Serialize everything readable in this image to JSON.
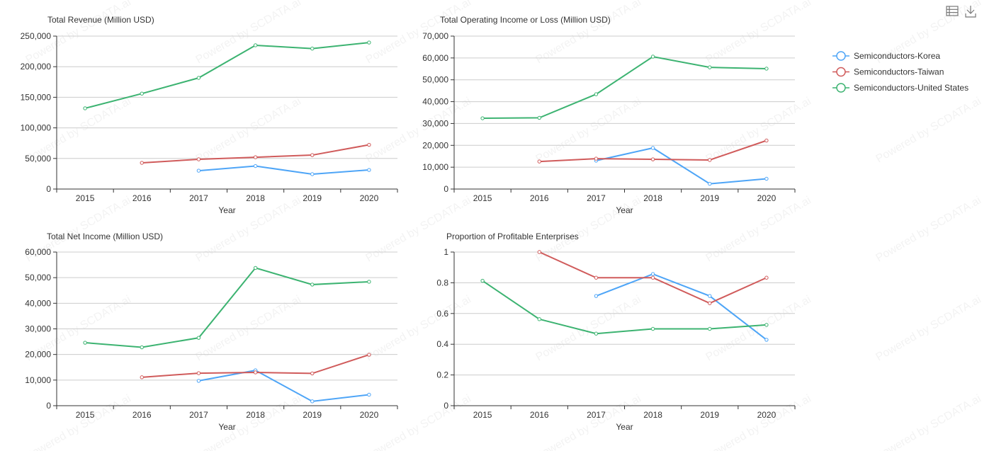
{
  "toolbar": {
    "icons": [
      "data-view-icon",
      "download-icon"
    ]
  },
  "watermark": "Powered by SCDATA.ai",
  "legend": [
    {
      "name": "Semiconductors-Korea",
      "color": "#4ea5f7"
    },
    {
      "name": "Semiconductors-Taiwan",
      "color": "#d05b5b"
    },
    {
      "name": "Semiconductors-United States",
      "color": "#3cb371"
    }
  ],
  "chart_data": [
    {
      "type": "line",
      "title": "Total Revenue (Million USD)",
      "xlabel": "Year",
      "categories": [
        "2015",
        "2016",
        "2017",
        "2018",
        "2019",
        "2020"
      ],
      "ylim": [
        0,
        250000
      ],
      "yticks": [
        "0",
        "50,000",
        "100,000",
        "150,000",
        "200,000",
        "250,000"
      ],
      "grid": true,
      "series": [
        {
          "name": "Semiconductors-Korea",
          "values": [
            null,
            null,
            30000,
            37600,
            24300,
            31200
          ]
        },
        {
          "name": "Semiconductors-Taiwan",
          "values": [
            null,
            42800,
            48600,
            52000,
            55500,
            72300
          ]
        },
        {
          "name": "Semiconductors-United States",
          "values": [
            132000,
            156000,
            181700,
            235000,
            229600,
            239500
          ]
        }
      ]
    },
    {
      "type": "line",
      "title": "Total Operating Income or Loss (Million USD)",
      "xlabel": "Year",
      "categories": [
        "2015",
        "2016",
        "2017",
        "2018",
        "2019",
        "2020"
      ],
      "ylim": [
        0,
        70000
      ],
      "yticks": [
        "0",
        "10,000",
        "20,000",
        "30,000",
        "40,000",
        "50,000",
        "60,000",
        "70,000"
      ],
      "grid": true,
      "series": [
        {
          "name": "Semiconductors-Korea",
          "values": [
            null,
            null,
            13000,
            18800,
            2400,
            4700
          ]
        },
        {
          "name": "Semiconductors-Taiwan",
          "values": [
            null,
            12600,
            13900,
            13600,
            13300,
            22200
          ]
        },
        {
          "name": "Semiconductors-United States",
          "values": [
            32400,
            32600,
            43400,
            60600,
            55700,
            55100
          ]
        }
      ]
    },
    {
      "type": "line",
      "title": "Total Net Income (Million USD)",
      "xlabel": "Year",
      "categories": [
        "2015",
        "2016",
        "2017",
        "2018",
        "2019",
        "2020"
      ],
      "ylim": [
        0,
        60000
      ],
      "yticks": [
        "0",
        "10,000",
        "20,000",
        "30,000",
        "40,000",
        "50,000",
        "60,000"
      ],
      "grid": true,
      "series": [
        {
          "name": "Semiconductors-Korea",
          "values": [
            null,
            null,
            9700,
            13800,
            1700,
            4300
          ]
        },
        {
          "name": "Semiconductors-Taiwan",
          "values": [
            null,
            11100,
            12700,
            13000,
            12600,
            19900
          ]
        },
        {
          "name": "Semiconductors-United States",
          "values": [
            24600,
            22800,
            26500,
            53800,
            47300,
            48400
          ]
        }
      ]
    },
    {
      "type": "line",
      "title": "Proportion of Profitable Enterprises",
      "xlabel": "Year",
      "categories": [
        "2015",
        "2016",
        "2017",
        "2018",
        "2019",
        "2020"
      ],
      "ylim": [
        0,
        1
      ],
      "yticks": [
        "0",
        "0.2",
        "0.4",
        "0.6",
        "0.8",
        "1"
      ],
      "grid": true,
      "series": [
        {
          "name": "Semiconductors-Korea",
          "values": [
            null,
            null,
            0.714,
            0.857,
            0.714,
            0.429
          ]
        },
        {
          "name": "Semiconductors-Taiwan",
          "values": [
            null,
            1,
            0.833,
            0.833,
            0.667,
            0.833
          ]
        },
        {
          "name": "Semiconductors-United States",
          "values": [
            0.813,
            0.563,
            0.469,
            0.5,
            0.5,
            0.526
          ]
        }
      ]
    }
  ]
}
